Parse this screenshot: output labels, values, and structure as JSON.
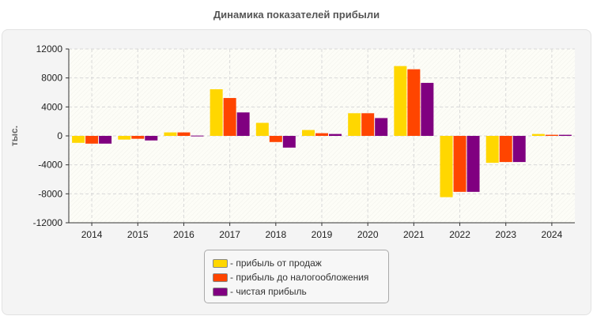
{
  "chart_data": {
    "type": "bar",
    "title": "Динамика показателей прибыли",
    "ylabel": "тыс.",
    "xlabel": "",
    "ylim": [
      -12000,
      12000
    ],
    "yticks": [
      -12000,
      -8000,
      -4000,
      0,
      4000,
      8000,
      12000
    ],
    "grid": true,
    "legend_position": "bottom",
    "categories": [
      "2014",
      "2015",
      "2016",
      "2017",
      "2018",
      "2019",
      "2020",
      "2021",
      "2022",
      "2023",
      "2024"
    ],
    "series": [
      {
        "name": "- прибыль от продаж",
        "color": "#ffd700",
        "values": [
          -960,
          -510,
          480,
          6440,
          1800,
          810,
          3130,
          9640,
          -8460,
          -3720,
          260
        ]
      },
      {
        "name": "- прибыль до налогообложения",
        "color": "#ff4500",
        "values": [
          -1070,
          -400,
          480,
          5230,
          -850,
          370,
          3130,
          9200,
          -7730,
          -3610,
          150
        ]
      },
      {
        "name": "- чистая прибыль",
        "color": "#800080",
        "values": [
          -1070,
          -630,
          40,
          3240,
          -1620,
          260,
          2460,
          7320,
          -7730,
          -3610,
          150
        ]
      }
    ]
  }
}
